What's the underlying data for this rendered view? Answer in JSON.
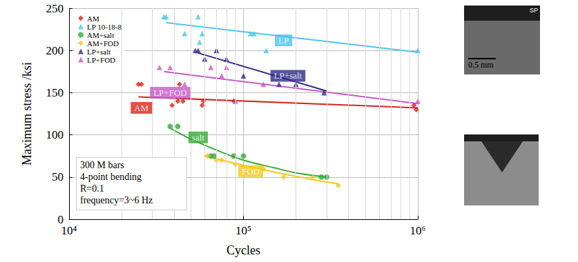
{
  "chart_data": {
    "type": "scatter",
    "xlabel": "Cycles",
    "ylabel": "Maximum stress /ksi",
    "log": "x",
    "grid": true,
    "legend": "upper left",
    "xlim": [
      10000,
      1000000
    ],
    "xticks": [
      {
        "value": 10000,
        "label": "10⁴"
      },
      {
        "value": 100000,
        "label": "10⁵"
      },
      {
        "value": 1000000,
        "label": "10⁶"
      }
    ],
    "ylim": [
      0,
      250
    ],
    "yticks": [
      0,
      50,
      100,
      150,
      200,
      250
    ],
    "note": [
      "300 M bars",
      "4-point bending",
      "R=0.1",
      "frequency=3~6 Hz"
    ],
    "images": [
      {
        "texts": [
          "SP",
          "0.5 mm"
        ]
      },
      {
        "texts": []
      }
    ],
    "series": [
      {
        "name": "AM",
        "color": "#d7261e",
        "marker": "diamond",
        "x": [
          25000,
          26000,
          39000,
          42000,
          43000,
          45000,
          58000,
          59000,
          88000,
          950000,
          980000
        ],
        "values": [
          160,
          160,
          135,
          140,
          160,
          140,
          135,
          140,
          140,
          135,
          130
        ],
        "fit": {
          "line_style": "solid",
          "x": [
            25000,
            1000000
          ],
          "values": [
            145,
            132
          ]
        },
        "label_box": {
          "text": "AM",
          "x": 26000,
          "y": 132
        }
      },
      {
        "name": "LP 10-18-8",
        "color": "#4ec3ea",
        "marker": "triangle",
        "x": [
          35000,
          36000,
          46000,
          55000,
          56000,
          58000,
          110000,
          115000,
          135000,
          1000000
        ],
        "values": [
          240,
          240,
          220,
          240,
          210,
          220,
          220,
          220,
          200,
          200
        ],
        "fit": {
          "line_style": "solid",
          "x": [
            36000,
            1000000
          ],
          "values": [
            233,
            198
          ]
        },
        "label_box": {
          "text": "LP",
          "x": 170000,
          "y": 212
        }
      },
      {
        "name": "AM+salt",
        "color": "#3aaa3a",
        "marker": "circle",
        "x": [
          38000,
          42000,
          65000,
          68000,
          88000,
          100000,
          280000,
          300000
        ],
        "values": [
          110,
          110,
          75,
          75,
          75,
          75,
          50,
          50
        ],
        "fit": {
          "line_style": "solid",
          "x": [
            38000,
            50000,
            70000,
            100000,
            150000,
            200000,
            300000
          ],
          "values": [
            108,
            95,
            82,
            70,
            61,
            55,
            50
          ]
        },
        "label_box": {
          "text": "salt",
          "x": 55000,
          "y": 97
        }
      },
      {
        "name": "AM+FOD",
        "color": "#f2c81a",
        "marker": "diamond",
        "x": [
          62000,
          70000,
          75000,
          90000,
          130000,
          170000,
          250000,
          350000
        ],
        "values": [
          75,
          70,
          70,
          65,
          60,
          50,
          50,
          40
        ],
        "fit": {
          "line_style": "solid",
          "x": [
            60000,
            100000,
            150000,
            250000,
            350000
          ],
          "values": [
            75,
            64,
            56,
            47,
            42
          ]
        },
        "label_box": {
          "text": "FOD",
          "x": 110000,
          "y": 57
        }
      },
      {
        "name": "LP+salt",
        "color": "#2f2b86",
        "marker": "triangle",
        "x": [
          53000,
          55000,
          60000,
          70000,
          80000,
          100000,
          160000,
          200000,
          290000
        ],
        "values": [
          200,
          200,
          190,
          200,
          190,
          170,
          160,
          160,
          150
        ],
        "fit": {
          "line_style": "solid",
          "x": [
            55000,
            300000
          ],
          "values": [
            197,
            152
          ]
        },
        "label_box": {
          "text": "LP+salt",
          "x": 180000,
          "y": 170
        }
      },
      {
        "name": "LP+FOD",
        "color": "#c45ac6",
        "marker": "triangle",
        "x": [
          33000,
          38000,
          46000,
          65000,
          75000,
          80000,
          90000,
          130000,
          1000000
        ],
        "values": [
          180,
          180,
          160,
          180,
          170,
          180,
          140,
          160,
          140
        ],
        "fit": {
          "line_style": "solid",
          "x": [
            35000,
            1000000
          ],
          "values": [
            175,
            137
          ]
        },
        "label_box": {
          "text": "LP+FOD",
          "x": 38000,
          "y": 150
        }
      }
    ]
  }
}
